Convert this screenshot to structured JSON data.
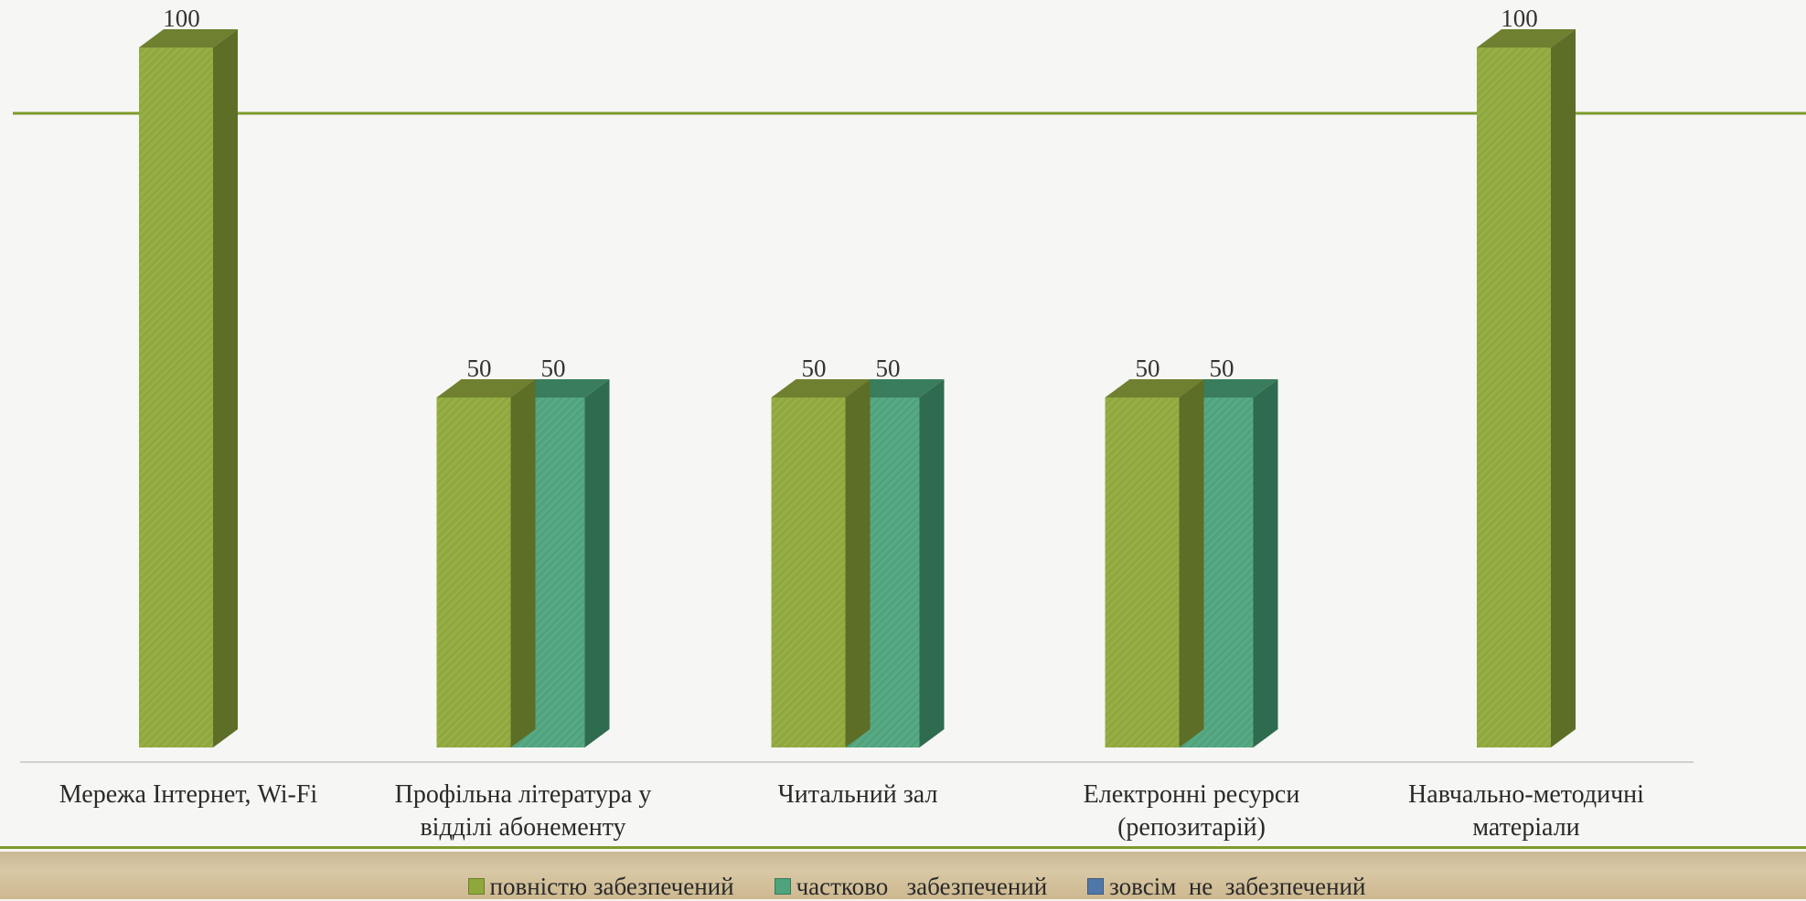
{
  "chart_data": {
    "type": "bar",
    "categories": [
      "Мережа Інтернет, Wi-Fi",
      "Профільна література у відділі абонементу",
      "Читальний зал",
      "Електронні ресурси (репозитарій)",
      "Навчально-методичні матеріали"
    ],
    "category_lines": [
      [
        "Мережа Інтернет, Wi-Fi"
      ],
      [
        "Профільна література у",
        "відділі абонементу"
      ],
      [
        "Читальний зал"
      ],
      [
        "Електронні ресурси",
        "(репозитарій)"
      ],
      [
        "Навчально-методичні",
        "матеріали"
      ]
    ],
    "series": [
      {
        "name": "повністю забезпечений",
        "values": [
          100,
          50,
          50,
          50,
          100
        ],
        "labels": [
          "100",
          "50",
          "50",
          "50",
          "100"
        ],
        "color": "#8fa83b",
        "side_color": "#5d6e27",
        "top_color": "#6f8030"
      },
      {
        "name": "частково   забезпечений",
        "values": [
          null,
          50,
          50,
          50,
          null
        ],
        "labels": [
          null,
          "50",
          "50",
          "50",
          null
        ],
        "color": "#4ea37c",
        "side_color": "#2f6b4f",
        "top_color": "#3a7d5d"
      },
      {
        "name": "зовсім  не  забезпечений",
        "values": [
          null,
          null,
          null,
          null,
          null
        ],
        "labels": [
          null,
          null,
          null,
          null,
          null
        ],
        "color": "#4f77a8",
        "side_color": "#34547d",
        "top_color": "#3e6290"
      }
    ],
    "ylim": [
      0,
      100
    ],
    "grid": false,
    "legend_position": "bottom"
  },
  "colors": {
    "accent_line": "#7e9a2e",
    "axis": "#d0d0d0"
  }
}
